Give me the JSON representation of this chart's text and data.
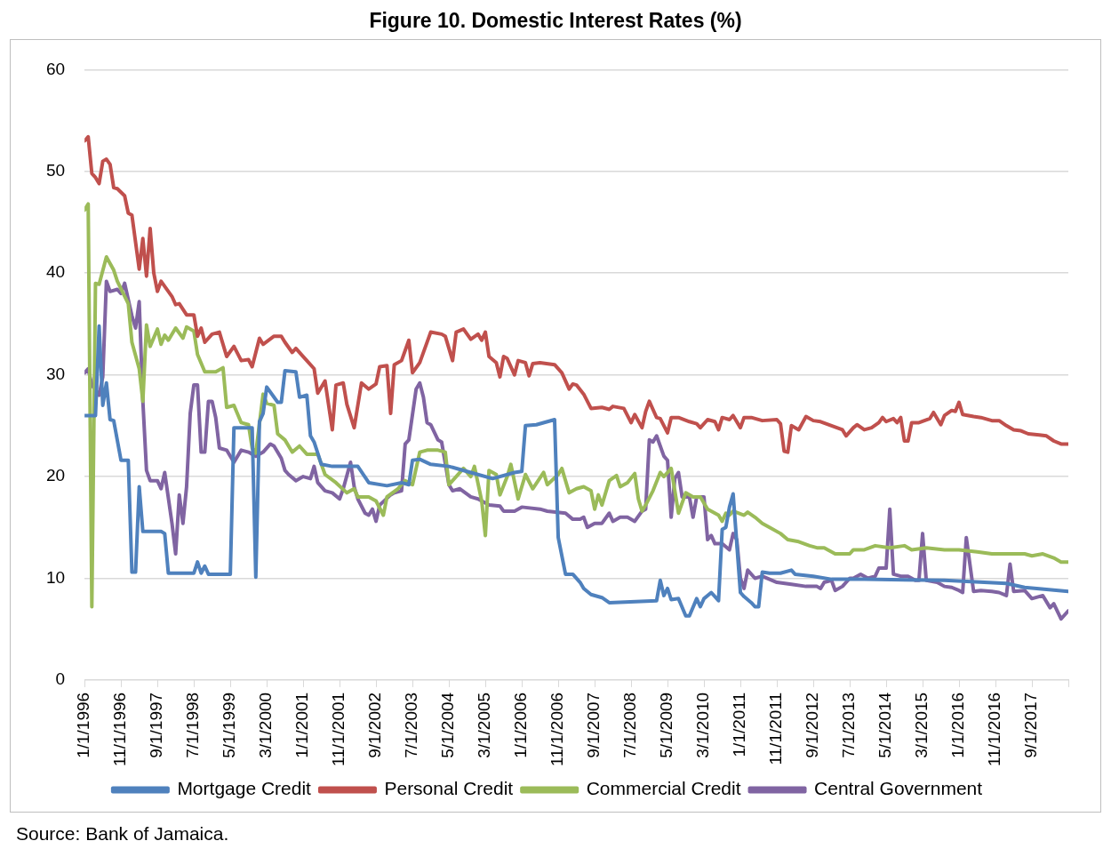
{
  "chart_data": {
    "type": "line",
    "title": "Figure 10. Domestic Interest Rates (%)",
    "annotations": [
      "Source: Bank of Jamaica."
    ],
    "xlim": [
      "1996-01",
      "2018-07"
    ],
    "xticks": [
      {
        "value": "1996-01",
        "label": "1/1/1996"
      },
      {
        "value": "1996-11",
        "label": "11/1/1996"
      },
      {
        "value": "1997-09",
        "label": "9/1/1997"
      },
      {
        "value": "1998-07",
        "label": "7/1/1998"
      },
      {
        "value": "1999-05",
        "label": "5/1/1999"
      },
      {
        "value": "2000-03",
        "label": "3/1/2000"
      },
      {
        "value": "2001-01",
        "label": "1/1/2001"
      },
      {
        "value": "2001-11",
        "label": "11/1/2001"
      },
      {
        "value": "2002-09",
        "label": "9/1/2002"
      },
      {
        "value": "2003-07",
        "label": "7/1/2003"
      },
      {
        "value": "2004-05",
        "label": "5/1/2004"
      },
      {
        "value": "2005-03",
        "label": "3/1/2005"
      },
      {
        "value": "2006-01",
        "label": "1/1/2006"
      },
      {
        "value": "2006-11",
        "label": "11/1/2006"
      },
      {
        "value": "2007-09",
        "label": "9/1/2007"
      },
      {
        "value": "2008-07",
        "label": "7/1/2008"
      },
      {
        "value": "2009-05",
        "label": "5/1/2009"
      },
      {
        "value": "2010-03",
        "label": "3/1/2010"
      },
      {
        "value": "2011-01",
        "label": "1/1/2011"
      },
      {
        "value": "2011-11",
        "label": "11/1/2011"
      },
      {
        "value": "2012-09",
        "label": "9/1/2012"
      },
      {
        "value": "2013-07",
        "label": "7/1/2013"
      },
      {
        "value": "2014-05",
        "label": "5/1/2014"
      },
      {
        "value": "2015-03",
        "label": "3/1/2015"
      },
      {
        "value": "2016-01",
        "label": "1/1/2016"
      },
      {
        "value": "2016-11",
        "label": "11/1/2016"
      },
      {
        "value": "2017-09",
        "label": "9/1/2017"
      },
      {
        "value": "2018-07",
        "label": null
      }
    ],
    "ylim": [
      0,
      60
    ],
    "yticks": [
      0,
      10,
      20,
      30,
      40,
      50,
      60
    ],
    "grid": "y",
    "legend": "bottom",
    "marker": "none",
    "line_style": "solid",
    "series": [
      {
        "name": "Mortgage Credit",
        "color": "#4f81bd",
        "x": [
          "1996-01",
          "1996-04",
          "1996-05",
          "1996-06",
          "1996-07",
          "1996-08",
          "1996-09",
          "1996-11",
          "1997-01",
          "1997-02",
          "1997-03",
          "1997-04",
          "1997-05",
          "1997-10",
          "1997-11",
          "1997-12",
          "1998-07",
          "1998-08",
          "1998-09",
          "1998-10",
          "1998-11",
          "1999-05",
          "1999-06",
          "1999-11",
          "1999-12",
          "2000-01",
          "2000-02",
          "2000-03",
          "2000-06",
          "2000-07",
          "2000-08",
          "2000-11",
          "2000-12",
          "2001-02",
          "2001-03",
          "2001-04",
          "2001-06",
          "2001-09",
          "2002-04",
          "2002-07",
          "2002-12",
          "2003-04",
          "2003-06",
          "2003-07",
          "2003-09",
          "2003-12",
          "2004-05",
          "2004-11",
          "2005-05",
          "2005-11",
          "2006-01",
          "2006-02",
          "2006-05",
          "2006-10",
          "2006-11",
          "2007-01",
          "2007-03",
          "2007-05",
          "2007-06",
          "2007-08",
          "2007-11",
          "2008-01",
          "2009-02",
          "2009-03",
          "2009-04",
          "2009-05",
          "2009-06",
          "2009-08",
          "2009-10",
          "2009-11",
          "2010-01",
          "2010-02",
          "2010-03",
          "2010-05",
          "2010-07",
          "2010-08",
          "2010-09",
          "2010-10",
          "2010-11",
          "2011-01",
          "2011-02",
          "2011-04",
          "2011-05",
          "2011-06",
          "2011-07",
          "2011-09",
          "2011-12",
          "2012-03",
          "2012-04",
          "2012-09",
          "2013-02",
          "2013-11",
          "2015-09",
          "2017-02",
          "2017-07",
          "2018-01",
          "2018-07"
        ],
        "values": [
          26.0,
          26.0,
          34.8,
          27,
          29.2,
          25.6,
          25.5,
          21.6,
          21.6,
          10.6,
          10.6,
          19,
          14.6,
          14.6,
          14.4,
          10.5,
          10.5,
          11.6,
          10.5,
          11.2,
          10.4,
          10.4,
          24.8,
          24.8,
          10.1,
          25.4,
          26.2,
          28.8,
          27.3,
          27.3,
          30.4,
          30.3,
          27.8,
          28,
          24,
          23.4,
          21.2,
          21.0,
          21.0,
          19.4,
          19.1,
          19.4,
          19.2,
          21.6,
          21.7,
          21.2,
          21.0,
          20.4,
          19.8,
          20.4,
          20.5,
          25.0,
          25.1,
          25.6,
          14.0,
          10.4,
          10.4,
          9.6,
          9.0,
          8.4,
          8.1,
          7.6,
          7.8,
          9.8,
          8.3,
          9,
          7.9,
          8,
          6.3,
          6.3,
          8.0,
          7.2,
          8,
          8.6,
          7.8,
          14.8,
          15,
          17,
          18.3,
          8.6,
          8.2,
          7.6,
          7.2,
          7.2,
          10.6,
          10.5,
          10.5,
          10.8,
          10.4,
          10.2,
          9.9,
          9.9,
          9.8,
          9.5,
          9.1,
          8.9,
          8.7
        ]
      },
      {
        "name": "Personal Credit",
        "color": "#c0504d",
        "x": [
          "1996-01",
          "1996-02",
          "1996-03",
          "1996-04",
          "1996-05",
          "1996-06",
          "1996-07",
          "1996-08",
          "1996-09",
          "1996-10",
          "1996-12",
          "1997-01",
          "1997-02",
          "1997-04",
          "1997-05",
          "1997-06",
          "1997-07",
          "1997-08",
          "1997-09",
          "1997-10",
          "1997-12",
          "1998-01",
          "1998-02",
          "1998-03",
          "1998-05",
          "1998-07",
          "1998-08",
          "1998-09",
          "1998-10",
          "1998-12",
          "1999-02",
          "1999-04",
          "1999-06",
          "1999-08",
          "1999-10",
          "1999-11",
          "2000-01",
          "2000-02",
          "2000-05",
          "2000-07",
          "2000-08",
          "2000-10",
          "2000-11",
          "2001-01",
          "2001-02",
          "2001-04",
          "2001-05",
          "2001-07",
          "2001-09",
          "2001-10",
          "2001-12",
          "2002-01",
          "2002-03",
          "2002-05",
          "2002-07",
          "2002-09",
          "2002-10",
          "2002-12",
          "2003-01",
          "2003-02",
          "2003-04",
          "2003-06",
          "2003-07",
          "2003-09",
          "2003-12",
          "2004-03",
          "2004-04",
          "2004-06",
          "2004-07",
          "2004-09",
          "2004-11",
          "2005-01",
          "2005-02",
          "2005-03",
          "2005-04",
          "2005-06",
          "2005-07",
          "2005-08",
          "2005-09",
          "2005-11",
          "2005-12",
          "2006-02",
          "2006-03",
          "2006-04",
          "2006-06",
          "2006-10",
          "2006-12",
          "2007-02",
          "2007-03",
          "2007-04",
          "2007-06",
          "2007-08",
          "2007-11",
          "2008-01",
          "2008-02",
          "2008-05",
          "2008-07",
          "2008-08",
          "2008-10",
          "2008-11",
          "2008-12",
          "2009-02",
          "2009-03",
          "2009-05",
          "2009-06",
          "2009-08",
          "2009-11",
          "2010-01",
          "2010-02",
          "2010-04",
          "2010-06",
          "2010-07",
          "2010-08",
          "2010-10",
          "2010-11",
          "2011-01",
          "2011-02",
          "2011-04",
          "2011-07",
          "2011-11",
          "2011-12",
          "2012-01",
          "2012-02",
          "2012-03",
          "2012-05",
          "2012-07",
          "2012-09",
          "2012-11",
          "2013-02",
          "2013-05",
          "2013-06",
          "2013-08",
          "2013-09",
          "2013-11",
          "2014-01",
          "2014-03",
          "2014-04",
          "2014-05",
          "2014-07",
          "2014-08",
          "2014-09",
          "2014-10",
          "2014-11",
          "2014-12",
          "2015-02",
          "2015-05",
          "2015-06",
          "2015-08",
          "2015-09",
          "2015-11",
          "2015-12",
          "2016-01",
          "2016-02",
          "2016-05",
          "2016-07",
          "2016-10",
          "2016-12",
          "2017-02",
          "2017-04",
          "2017-06",
          "2017-08",
          "2017-11",
          "2018-01",
          "2018-03",
          "2018-05",
          "2018-07"
        ],
        "values": [
          53.0,
          53.4,
          49.8,
          49.4,
          48.8,
          51.0,
          51.2,
          50.7,
          48.4,
          48.3,
          47.6,
          45.9,
          45.7,
          40.4,
          43.4,
          39.7,
          44.4,
          40,
          38.2,
          39.2,
          38.2,
          37.7,
          36.9,
          37,
          35.9,
          35.9,
          33.8,
          34.6,
          33.2,
          34.0,
          34.2,
          31.8,
          32.8,
          31.4,
          31.5,
          30.8,
          33.6,
          33,
          33.8,
          33.8,
          33.2,
          32.2,
          32.6,
          31.8,
          31.4,
          30.6,
          28.2,
          29.4,
          24.6,
          29,
          29.2,
          27.1,
          24.8,
          29.2,
          28.6,
          29.1,
          30.8,
          30.9,
          26.2,
          31,
          31.4,
          33.4,
          30.2,
          31.2,
          34.2,
          34.0,
          33.8,
          31.4,
          34.2,
          34.5,
          33.5,
          34,
          33.4,
          34.2,
          31.8,
          31.2,
          29.8,
          31.8,
          31.6,
          30,
          31.4,
          31.2,
          29.9,
          31.1,
          31.2,
          31,
          30.2,
          28.6,
          29.1,
          29.0,
          28.1,
          26.7,
          26.8,
          26.6,
          26.9,
          26.7,
          25.3,
          26.1,
          24.8,
          26.4,
          27.4,
          25.8,
          25.7,
          24.3,
          25.8,
          25.8,
          25.4,
          25.2,
          24.8,
          25.6,
          25.4,
          24.6,
          25.8,
          25.6,
          26,
          24.8,
          25.8,
          25.8,
          25.5,
          25.6,
          25.2,
          22.5,
          22.4,
          25,
          24.6,
          25.9,
          25.5,
          25.4,
          25,
          24.6,
          24,
          24.8,
          25.1,
          24.6,
          24.8,
          25.3,
          25.8,
          25.4,
          25.7,
          25.3,
          25.8,
          23.5,
          23.5,
          25.3,
          25.3,
          25.7,
          26.3,
          25.1,
          26,
          26.5,
          26.4,
          27.3,
          26.1,
          25.9,
          25.8,
          25.5,
          25.5,
          25,
          24.6,
          24.5,
          24.2,
          24.1,
          24,
          23.5,
          23.2,
          23.2
        ]
      },
      {
        "name": "Commercial Credit",
        "color": "#9bbb59",
        "x": [
          "1996-01",
          "1996-02",
          "1996-03",
          "1996-04",
          "1996-05",
          "1996-07",
          "1996-09",
          "1996-10",
          "1997-01",
          "1997-02",
          "1997-04",
          "1997-05",
          "1997-06",
          "1997-07",
          "1997-09",
          "1997-10",
          "1997-11",
          "1997-12",
          "1998-02",
          "1998-04",
          "1998-05",
          "1998-07",
          "1998-08",
          "1998-10",
          "1999-01",
          "1999-03",
          "1999-04",
          "1999-06",
          "1999-08",
          "1999-10",
          "1999-11",
          "1999-12",
          "2000-02",
          "2000-03",
          "2000-05",
          "2000-06",
          "2000-08",
          "2000-10",
          "2000-12",
          "2001-02",
          "2001-05",
          "2001-07",
          "2001-10",
          "2002-01",
          "2002-03",
          "2002-04",
          "2002-07",
          "2002-09",
          "2002-11",
          "2002-12",
          "2003-03",
          "2003-05",
          "2003-07",
          "2003-09",
          "2003-11",
          "2004-02",
          "2004-04",
          "2004-05",
          "2004-09",
          "2004-11",
          "2004-12",
          "2005-02",
          "2005-03",
          "2005-04",
          "2005-06",
          "2005-07",
          "2005-09",
          "2005-10",
          "2005-12",
          "2006-02",
          "2006-04",
          "2006-07",
          "2006-08",
          "2006-11",
          "2006-12",
          "2007-02",
          "2007-04",
          "2007-06",
          "2007-08",
          "2007-09",
          "2007-10",
          "2007-11",
          "2008-01",
          "2008-03",
          "2008-04",
          "2008-06",
          "2008-08",
          "2008-09",
          "2008-10",
          "2008-11",
          "2009-01",
          "2009-03",
          "2009-04",
          "2009-06",
          "2009-08",
          "2009-10",
          "2009-12",
          "2010-02",
          "2010-04",
          "2010-07",
          "2010-08",
          "2010-09",
          "2010-10",
          "2010-11",
          "2011-02",
          "2011-03",
          "2011-05",
          "2011-07",
          "2011-09",
          "2011-12",
          "2012-02",
          "2012-05",
          "2012-08",
          "2012-10",
          "2012-12",
          "2013-03",
          "2013-07",
          "2013-08",
          "2013-11",
          "2014-02",
          "2014-06",
          "2014-10",
          "2014-12",
          "2015-04",
          "2015-09",
          "2016-01",
          "2016-06",
          "2016-10",
          "2017-02",
          "2017-07",
          "2017-09",
          "2017-12",
          "2018-03",
          "2018-05",
          "2018-07"
        ],
        "values": [
          46.2,
          46.8,
          7.2,
          39.0,
          38.9,
          41.6,
          40.3,
          39.2,
          37,
          33.2,
          30.6,
          27.4,
          34.9,
          32.8,
          34.5,
          33.0,
          33.9,
          33.4,
          34.6,
          33.6,
          34.7,
          34.3,
          32.0,
          30.3,
          30.3,
          30.7,
          26.8,
          27,
          25.3,
          25.1,
          22.8,
          22.3,
          28.1,
          27.2,
          27,
          24.2,
          23.6,
          22.4,
          23,
          22.2,
          22.2,
          20.2,
          19.4,
          18.4,
          18.8,
          18,
          18,
          17.6,
          16.2,
          18,
          18.8,
          19.6,
          19.2,
          22.4,
          22.6,
          22.6,
          22.4,
          19.2,
          20.8,
          20,
          21,
          17.6,
          14.2,
          20.6,
          20.2,
          18.2,
          20,
          21.2,
          17.8,
          20.2,
          18.8,
          20.4,
          19.2,
          20.2,
          20.8,
          18.4,
          18.8,
          19,
          18.6,
          16.8,
          18.2,
          17.2,
          19.6,
          20.1,
          19,
          19.4,
          20.3,
          17.8,
          16.6,
          17.2,
          18.6,
          20.4,
          20,
          20.8,
          16.4,
          18.4,
          18,
          18,
          16.8,
          16.2,
          15.6,
          16.4,
          16.2,
          16.6,
          16.2,
          16.5,
          16,
          15.4,
          15,
          14.4,
          13.8,
          13.6,
          13.2,
          13,
          13.0,
          12.4,
          12.4,
          12.8,
          12.8,
          13.2,
          13.0,
          13.2,
          12.8,
          13.0,
          12.8,
          12.8,
          12.6,
          12.4,
          12.4,
          12.4,
          12.2,
          12.4,
          12.0,
          11.6,
          11.6
        ]
      },
      {
        "name": "Central Government",
        "color": "#8064a2",
        "x": [
          "1996-01",
          "1996-02",
          "1996-03",
          "1996-05",
          "1996-06",
          "1996-07",
          "1996-08",
          "1996-10",
          "1996-11",
          "1996-12",
          "1997-02",
          "1997-03",
          "1997-04",
          "1997-05",
          "1997-06",
          "1997-07",
          "1997-09",
          "1997-10",
          "1997-11",
          "1998-01",
          "1998-02",
          "1998-03",
          "1998-04",
          "1998-05",
          "1998-06",
          "1998-07",
          "1998-08",
          "1998-09",
          "1998-10",
          "1998-11",
          "1998-12",
          "1999-01",
          "1999-02",
          "1999-04",
          "1999-06",
          "1999-08",
          "1999-10",
          "1999-12",
          "2000-02",
          "2000-04",
          "2000-05",
          "2000-07",
          "2000-08",
          "2000-09",
          "2000-11",
          "2001-01",
          "2001-03",
          "2001-04",
          "2001-05",
          "2001-07",
          "2001-09",
          "2001-11",
          "2001-12",
          "2002-02",
          "2002-03",
          "2002-04",
          "2002-06",
          "2002-07",
          "2002-08",
          "2002-09",
          "2002-10",
          "2003-01",
          "2003-02",
          "2003-04",
          "2003-05",
          "2003-06",
          "2003-08",
          "2003-09",
          "2003-10",
          "2003-11",
          "2003-12",
          "2004-02",
          "2004-03",
          "2004-05",
          "2004-06",
          "2004-08",
          "2004-11",
          "2005-01",
          "2005-04",
          "2005-07",
          "2005-08",
          "2005-11",
          "2006-01",
          "2006-06",
          "2006-08",
          "2007-01",
          "2007-03",
          "2007-05",
          "2007-06",
          "2007-07",
          "2007-09",
          "2007-11",
          "2008-01",
          "2008-02",
          "2008-04",
          "2008-06",
          "2008-08",
          "2008-10",
          "2008-11",
          "2008-12",
          "2009-01",
          "2009-02",
          "2009-04",
          "2009-05",
          "2009-06",
          "2009-07",
          "2009-08",
          "2009-09",
          "2009-11",
          "2009-12",
          "2010-01",
          "2010-03",
          "2010-04",
          "2010-05",
          "2010-06",
          "2010-08",
          "2010-10",
          "2010-11",
          "2010-12",
          "2011-01",
          "2011-02",
          "2011-03",
          "2011-05",
          "2011-07",
          "2011-11",
          "2012-03",
          "2012-07",
          "2012-10",
          "2012-11",
          "2012-12",
          "2013-02",
          "2013-03",
          "2013-05",
          "2013-07",
          "2013-08",
          "2013-10",
          "2013-12",
          "2014-02",
          "2014-03",
          "2014-05",
          "2014-06",
          "2014-07",
          "2014-09",
          "2014-11",
          "2015-01",
          "2015-02",
          "2015-03",
          "2015-04",
          "2015-07",
          "2015-09",
          "2015-11",
          "2016-01",
          "2016-02",
          "2016-03",
          "2016-05",
          "2016-07",
          "2016-10",
          "2016-12",
          "2017-02",
          "2017-03",
          "2017-04",
          "2017-07",
          "2017-09",
          "2017-12",
          "2018-02",
          "2018-03",
          "2018-05",
          "2018-07"
        ],
        "values": [
          30.2,
          30.6,
          29,
          28,
          29.8,
          39.2,
          38.2,
          38.4,
          38,
          39,
          35.8,
          34.6,
          37.2,
          27.4,
          20.6,
          19.6,
          19.6,
          18.8,
          20.4,
          15.4,
          12.4,
          18.2,
          15.4,
          19,
          26.2,
          29,
          29,
          22.4,
          22.4,
          27.4,
          27.4,
          25.8,
          22.8,
          22.6,
          21.4,
          22.6,
          22.4,
          22,
          22.4,
          23.2,
          23,
          21.8,
          20.6,
          20.2,
          19.6,
          20,
          19.8,
          21,
          19.4,
          18.6,
          18.4,
          17.8,
          18.8,
          21.4,
          19,
          17.8,
          16.4,
          16.2,
          16.8,
          15.6,
          17.2,
          18.2,
          18.4,
          18.6,
          23.2,
          23.6,
          28.6,
          29.2,
          27.8,
          25.3,
          25.1,
          23.6,
          23.4,
          19.2,
          18.6,
          18.8,
          18,
          17.8,
          17.2,
          17.1,
          16.6,
          16.6,
          17,
          16.8,
          16.6,
          16.4,
          15.8,
          15.8,
          16,
          15,
          15.4,
          15.4,
          16.4,
          15.6,
          16,
          16,
          15.6,
          16.6,
          16.8,
          23.6,
          23.4,
          24,
          22,
          21.6,
          16,
          19.8,
          20.4,
          18,
          18,
          16,
          18,
          18,
          13.8,
          14.2,
          13.4,
          13.4,
          12.8,
          14.4,
          13.8,
          10.0,
          9.0,
          10.8,
          10,
          10.2,
          9.6,
          9.4,
          9.2,
          9.2,
          9.0,
          9.6,
          9.8,
          8.8,
          9.2,
          10.0,
          10.0,
          10.4,
          10.0,
          10.2,
          11.0,
          11.0,
          16.8,
          10.4,
          10.2,
          10.2,
          9.8,
          9.8,
          14.4,
          9.8,
          9.6,
          9.2,
          9.1,
          8.8,
          8.6,
          14.0,
          8.7,
          8.8,
          8.7,
          8.6,
          8.3,
          11.4,
          8.7,
          8.8,
          8.0,
          8.3,
          7.1,
          7.5,
          6.0,
          6.8
        ]
      }
    ]
  }
}
